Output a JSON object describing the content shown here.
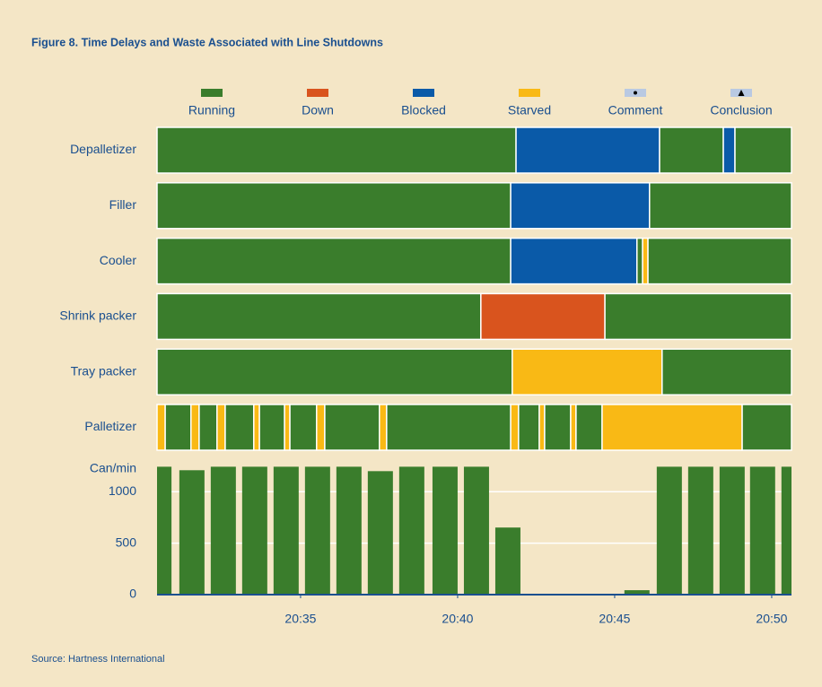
{
  "title": "Figure 8. Time Delays and Waste Associated with Line Shutdowns",
  "source": "Source: Hartness International",
  "chart_data": [
    {
      "type": "timeline",
      "xlim": [
        30.43,
        50.63
      ],
      "legend": [
        {
          "name": "Running",
          "color": "#3a7d2c"
        },
        {
          "name": "Down",
          "color": "#d9541e"
        },
        {
          "name": "Blocked",
          "color": "#0a5aa8"
        },
        {
          "name": "Starved",
          "color": "#f9b915"
        },
        {
          "name": "Comment",
          "color": "#b9c9e2",
          "symbol": "dot"
        },
        {
          "name": "Conclusion",
          "color": "#b9c9e2",
          "symbol": "triangle"
        }
      ],
      "rows": [
        {
          "name": "Depalletizer",
          "states": [
            "Running",
            "Blocked",
            "Running",
            "Blocked",
            "Running"
          ],
          "bounds": [
            30.43,
            41.86,
            46.43,
            48.46,
            48.83,
            50.63
          ]
        },
        {
          "name": "Filler",
          "states": [
            "Running",
            "Blocked",
            "Running"
          ],
          "bounds": [
            30.43,
            41.69,
            46.11,
            50.63
          ]
        },
        {
          "name": "Cooler",
          "states": [
            "Running",
            "Blocked",
            "Running",
            "Starved",
            "Running"
          ],
          "bounds": [
            30.43,
            41.69,
            45.71,
            45.89,
            46.06,
            50.63
          ]
        },
        {
          "name": "Shrink packer",
          "states": [
            "Running",
            "Down",
            "Running"
          ],
          "bounds": [
            30.43,
            40.74,
            44.69,
            50.63
          ]
        },
        {
          "name": "Tray packer",
          "states": [
            "Running",
            "Starved",
            "Running"
          ],
          "bounds": [
            30.43,
            41.74,
            46.51,
            50.63
          ]
        },
        {
          "name": "Palletizer",
          "states": [
            "Starved",
            "Running",
            "Starved",
            "Running",
            "Starved",
            "Running",
            "Starved",
            "Running",
            "Starved",
            "Running",
            "Starved",
            "Running",
            "Starved",
            "Running",
            "Starved",
            "Running",
            "Starved",
            "Running",
            "Starved",
            "Running",
            "Starved",
            "Running"
          ],
          "bounds": [
            30.43,
            30.69,
            31.51,
            31.77,
            32.34,
            32.6,
            33.51,
            33.69,
            34.49,
            34.66,
            35.51,
            35.77,
            37.51,
            37.74,
            41.69,
            41.94,
            42.6,
            42.77,
            43.6,
            43.77,
            44.6,
            49.06,
            50.63
          ]
        }
      ]
    },
    {
      "type": "bar",
      "ylabel": "Can/min",
      "color": "#3a7d2c",
      "x": [
        30.49,
        31.54,
        32.54,
        33.54,
        34.54,
        35.54,
        36.54,
        37.54,
        38.54,
        39.6,
        40.6,
        41.6,
        42.6,
        43.6,
        44.6,
        45.71,
        46.74,
        47.74,
        48.74,
        49.71,
        50.71
      ],
      "values": [
        1243,
        1209,
        1243,
        1243,
        1243,
        1243,
        1243,
        1200,
        1243,
        1243,
        1243,
        652,
        0,
        0,
        0,
        43,
        1243,
        1243,
        1243,
        1243,
        1243
      ],
      "xlim": [
        30.43,
        50.63
      ],
      "xticks": [
        {
          "value": 35,
          "label": "20:35"
        },
        {
          "value": 40,
          "label": "20:40"
        },
        {
          "value": 45,
          "label": "20:45"
        },
        {
          "value": 50,
          "label": "20:50"
        }
      ],
      "ylim": [
        0,
        1290
      ],
      "yticks": [
        0,
        500,
        1000
      ],
      "grid": true
    }
  ]
}
